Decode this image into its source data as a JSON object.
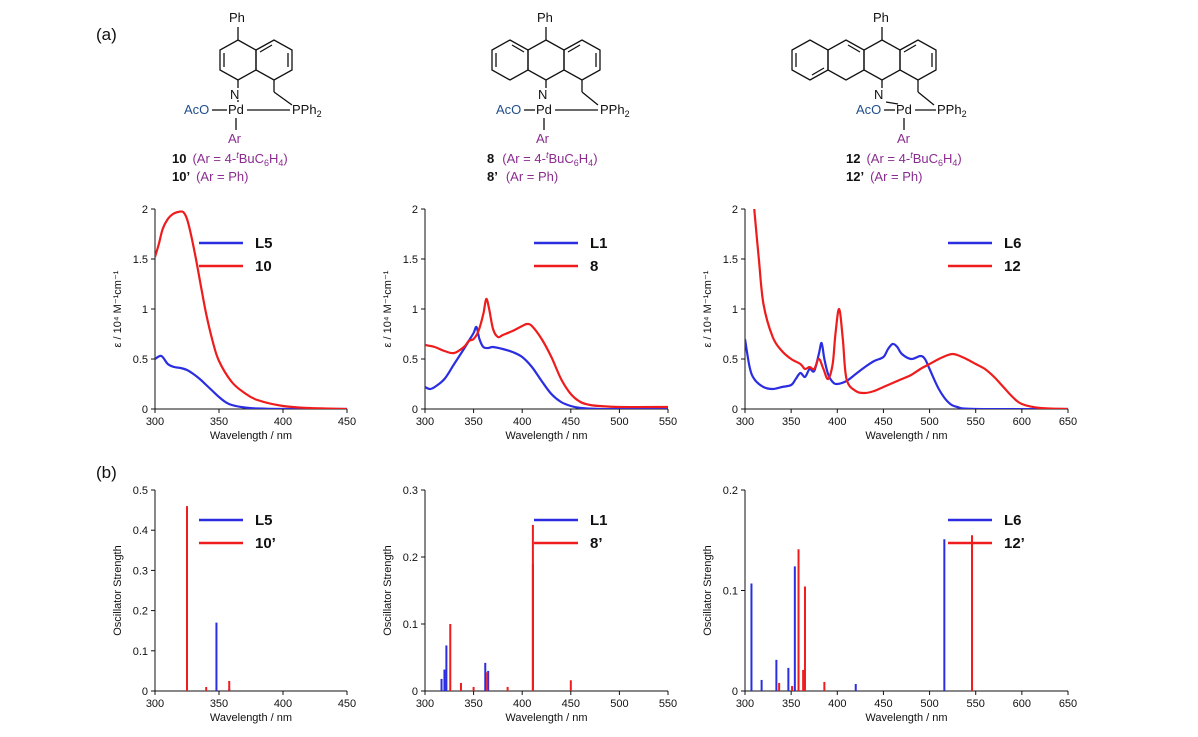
{
  "panel_labels": [
    "(a)",
    "(b)"
  ],
  "compounds": [
    {
      "top_label": "Ph",
      "n": "N",
      "pd": "Pd",
      "pph2": "PPh",
      "pph2_sub": "2",
      "aco": "AcO",
      "ar": "Ar",
      "caption1_id": "10",
      "caption1_rest": "(Ar = 4-",
      "caption1_sup": "t",
      "caption1_tail": "BuC",
      "caption1_sub6": "6",
      "caption1_h": "H",
      "caption1_sub4": "4",
      "caption1_close": ")",
      "caption2_id": "10’",
      "caption2_rest": "(Ar = Ph)"
    },
    {
      "top_label": "Ph",
      "n": "N",
      "pd": "Pd",
      "pph2": "PPh",
      "pph2_sub": "2",
      "aco": "AcO",
      "ar": "Ar",
      "caption1_id": "8",
      "caption1_rest": "(Ar = 4-",
      "caption1_sup": "t",
      "caption1_tail": "BuC",
      "caption1_sub6": "6",
      "caption1_h": "H",
      "caption1_sub4": "4",
      "caption1_close": ")",
      "caption2_id": "8’",
      "caption2_rest": "(Ar = Ph)"
    },
    {
      "top_label": "Ph",
      "n": "N",
      "pd": "Pd",
      "pph2": "PPh",
      "pph2_sub": "2",
      "aco": "AcO",
      "ar": "Ar",
      "caption1_id": "12",
      "caption1_rest": "(Ar = 4-",
      "caption1_sup": "t",
      "caption1_tail": "BuC",
      "caption1_sub6": "6",
      "caption1_h": "H",
      "caption1_sub4": "4",
      "caption1_close": ")",
      "caption2_id": "12’",
      "caption2_rest": "(Ar = Ph)"
    }
  ],
  "colors": {
    "blue": "#2a2ee0",
    "red": "#ee1c1c"
  },
  "chart_data": [
    {
      "type": "line",
      "xlabel": "Wavelength / nm",
      "ylabel": "ε / 10⁴ M⁻¹cm⁻¹",
      "xlim": [
        300,
        450
      ],
      "ylim": [
        0,
        2
      ],
      "xticks": [
        300,
        350,
        400,
        450
      ],
      "yticks": [
        0,
        0.5,
        1,
        1.5,
        2
      ],
      "series": [
        {
          "name": "L5",
          "color": "blue",
          "x": [
            300,
            305,
            310,
            315,
            320,
            325,
            330,
            335,
            340,
            345,
            350,
            355,
            360,
            370,
            380,
            400,
            450
          ],
          "y": [
            0.5,
            0.53,
            0.45,
            0.42,
            0.41,
            0.39,
            0.35,
            0.3,
            0.24,
            0.18,
            0.12,
            0.07,
            0.04,
            0.015,
            0.005,
            0.0,
            0.0
          ]
        },
        {
          "name": "10",
          "color": "red",
          "x": [
            300,
            303,
            306,
            310,
            314,
            318,
            322,
            325,
            328,
            332,
            336,
            340,
            345,
            350,
            360,
            370,
            380,
            400,
            420,
            450
          ],
          "y": [
            1.52,
            1.65,
            1.8,
            1.9,
            1.95,
            1.97,
            1.97,
            1.9,
            1.75,
            1.5,
            1.22,
            0.95,
            0.68,
            0.48,
            0.27,
            0.16,
            0.09,
            0.03,
            0.01,
            0.0
          ]
        }
      ]
    },
    {
      "type": "line",
      "xlabel": "Wavelength / nm",
      "ylabel": "ε / 10⁴ M⁻¹cm⁻¹",
      "xlim": [
        300,
        550
      ],
      "ylim": [
        0,
        2
      ],
      "xticks": [
        300,
        350,
        400,
        450,
        500,
        550
      ],
      "yticks": [
        0,
        0.5,
        1,
        1.5,
        2
      ],
      "series": [
        {
          "name": "L1",
          "color": "blue",
          "x": [
            300,
            305,
            310,
            320,
            330,
            340,
            345,
            350,
            353,
            356,
            360,
            365,
            370,
            380,
            390,
            400,
            410,
            420,
            430,
            440,
            450,
            460,
            480,
            500,
            550
          ],
          "y": [
            0.22,
            0.2,
            0.22,
            0.3,
            0.45,
            0.6,
            0.68,
            0.76,
            0.82,
            0.7,
            0.62,
            0.61,
            0.62,
            0.6,
            0.57,
            0.52,
            0.42,
            0.28,
            0.15,
            0.07,
            0.03,
            0.01,
            0.0,
            0.0,
            0.0
          ]
        },
        {
          "name": "8",
          "color": "red",
          "x": [
            300,
            310,
            320,
            330,
            340,
            345,
            350,
            355,
            360,
            363,
            366,
            370,
            375,
            380,
            390,
            400,
            405,
            410,
            420,
            430,
            440,
            450,
            460,
            470,
            480,
            500,
            550
          ],
          "y": [
            0.64,
            0.62,
            0.58,
            0.56,
            0.62,
            0.68,
            0.7,
            0.78,
            0.95,
            1.1,
            1.0,
            0.8,
            0.72,
            0.74,
            0.78,
            0.83,
            0.85,
            0.83,
            0.7,
            0.52,
            0.3,
            0.15,
            0.07,
            0.04,
            0.03,
            0.02,
            0.02
          ]
        }
      ]
    },
    {
      "type": "line",
      "xlabel": "Wavelength / nm",
      "ylabel": "ε / 10⁴ M⁻¹cm⁻¹",
      "xlim": [
        300,
        650
      ],
      "ylim": [
        0,
        2
      ],
      "xticks": [
        300,
        350,
        400,
        450,
        500,
        550,
        600,
        650
      ],
      "yticks": [
        0,
        0.5,
        1,
        1.5,
        2
      ],
      "series": [
        {
          "name": "L6",
          "color": "blue",
          "x": [
            300,
            305,
            310,
            320,
            330,
            340,
            350,
            355,
            360,
            365,
            370,
            375,
            380,
            383,
            386,
            390,
            395,
            400,
            410,
            420,
            430,
            440,
            450,
            455,
            460,
            465,
            470,
            480,
            490,
            495,
            500,
            510,
            520,
            530,
            550,
            650
          ],
          "y": [
            0.7,
            0.42,
            0.3,
            0.22,
            0.2,
            0.22,
            0.24,
            0.3,
            0.36,
            0.32,
            0.4,
            0.38,
            0.55,
            0.66,
            0.5,
            0.35,
            0.27,
            0.25,
            0.28,
            0.35,
            0.42,
            0.48,
            0.52,
            0.6,
            0.65,
            0.62,
            0.55,
            0.5,
            0.53,
            0.5,
            0.4,
            0.2,
            0.07,
            0.02,
            0.0,
            0.0
          ]
        },
        {
          "name": "12",
          "color": "red",
          "x": [
            310,
            315,
            320,
            330,
            340,
            350,
            360,
            365,
            370,
            375,
            380,
            385,
            390,
            395,
            398,
            402,
            406,
            410,
            420,
            430,
            440,
            450,
            460,
            470,
            480,
            490,
            500,
            510,
            520,
            525,
            530,
            540,
            550,
            560,
            570,
            580,
            590,
            600,
            620,
            650
          ],
          "y": [
            2.0,
            1.5,
            1.05,
            0.72,
            0.58,
            0.5,
            0.45,
            0.4,
            0.42,
            0.4,
            0.5,
            0.4,
            0.3,
            0.45,
            0.75,
            1.0,
            0.7,
            0.3,
            0.18,
            0.16,
            0.18,
            0.22,
            0.26,
            0.3,
            0.34,
            0.4,
            0.45,
            0.5,
            0.54,
            0.55,
            0.54,
            0.5,
            0.45,
            0.4,
            0.32,
            0.22,
            0.12,
            0.05,
            0.01,
            0.0
          ]
        }
      ]
    },
    {
      "type": "bar",
      "xlabel": "Wavelength / nm",
      "ylabel": "Oscillator Strength",
      "xlim": [
        300,
        450
      ],
      "ylim": [
        0,
        0.5
      ],
      "xticks": [
        300,
        350,
        400,
        450
      ],
      "yticks": [
        0,
        0.1,
        0.2,
        0.3,
        0.4,
        0.5
      ],
      "series": [
        {
          "name": "L5",
          "color": "blue",
          "x": [
            348,
            358
          ],
          "y": [
            0.17,
            0.005
          ]
        },
        {
          "name": "10’",
          "color": "red",
          "x": [
            325,
            340,
            358
          ],
          "y": [
            0.46,
            0.01,
            0.025
          ]
        }
      ]
    },
    {
      "type": "bar",
      "xlabel": "Wavelength / nm",
      "ylabel": "Oscillator Strength",
      "xlim": [
        300,
        550
      ],
      "ylim": [
        0,
        0.3
      ],
      "xticks": [
        300,
        350,
        400,
        450,
        500,
        550
      ],
      "yticks": [
        0,
        0.1,
        0.2,
        0.3
      ],
      "series": [
        {
          "name": "L1",
          "color": "blue",
          "x": [
            317,
            320,
            322,
            362,
            365,
            411
          ],
          "y": [
            0.018,
            0.032,
            0.068,
            0.042,
            0.03,
            0.19
          ]
        },
        {
          "name": "8’",
          "color": "red",
          "x": [
            326,
            337,
            350,
            364,
            385,
            411,
            450
          ],
          "y": [
            0.1,
            0.012,
            0.006,
            0.028,
            0.006,
            0.248,
            0.016
          ]
        }
      ]
    },
    {
      "type": "bar",
      "xlabel": "Wavelength / nm",
      "ylabel": "Oscillator Strength",
      "xlim": [
        300,
        650
      ],
      "ylim": [
        0,
        0.2
      ],
      "xticks": [
        300,
        350,
        400,
        450,
        500,
        550,
        600,
        650
      ],
      "yticks": [
        0,
        0.1,
        0.2
      ],
      "series": [
        {
          "name": "L6",
          "color": "blue",
          "x": [
            307,
            318,
            334,
            347,
            354,
            420,
            516
          ],
          "y": [
            0.107,
            0.011,
            0.031,
            0.023,
            0.124,
            0.007,
            0.151
          ]
        },
        {
          "name": "12’",
          "color": "red",
          "x": [
            337,
            351,
            358,
            363,
            365,
            386,
            546
          ],
          "y": [
            0.008,
            0.005,
            0.141,
            0.021,
            0.104,
            0.009,
            0.155
          ]
        }
      ]
    }
  ]
}
